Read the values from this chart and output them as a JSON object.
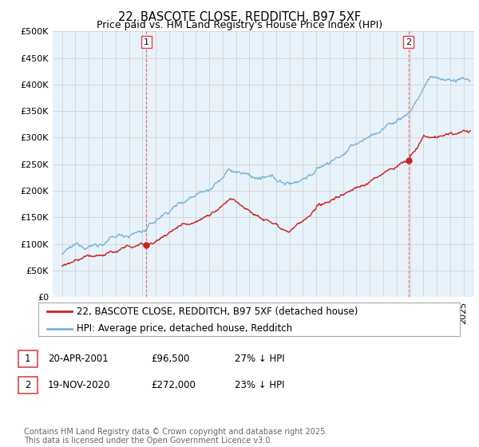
{
  "title": "22, BASCOTE CLOSE, REDDITCH, B97 5XF",
  "subtitle": "Price paid vs. HM Land Registry's House Price Index (HPI)",
  "ylim": [
    0,
    500000
  ],
  "yticks": [
    0,
    50000,
    100000,
    150000,
    200000,
    250000,
    300000,
    350000,
    400000,
    450000,
    500000
  ],
  "ytick_labels": [
    "£0",
    "£50K",
    "£100K",
    "£150K",
    "£200K",
    "£250K",
    "£300K",
    "£350K",
    "£400K",
    "£450K",
    "£500K"
  ],
  "hpi_color": "#7ab4d8",
  "price_color": "#cc2222",
  "fill_color": "#ddeeff",
  "vline_color": "#dd4444",
  "sale1_year": 2001.3,
  "sale1_price": 96500,
  "sale2_year": 2020.89,
  "sale2_price": 272000,
  "legend_line1": "22, BASCOTE CLOSE, REDDITCH, B97 5XF (detached house)",
  "legend_line2": "HPI: Average price, detached house, Redditch",
  "footnote": "Contains HM Land Registry data © Crown copyright and database right 2025.\nThis data is licensed under the Open Government Licence v3.0.",
  "background_color": "#ffffff",
  "grid_color": "#cccccc",
  "title_fontsize": 10.5,
  "subtitle_fontsize": 9,
  "tick_fontsize": 8,
  "legend_fontsize": 8.5,
  "annotation_fontsize": 8.5,
  "footnote_fontsize": 7
}
